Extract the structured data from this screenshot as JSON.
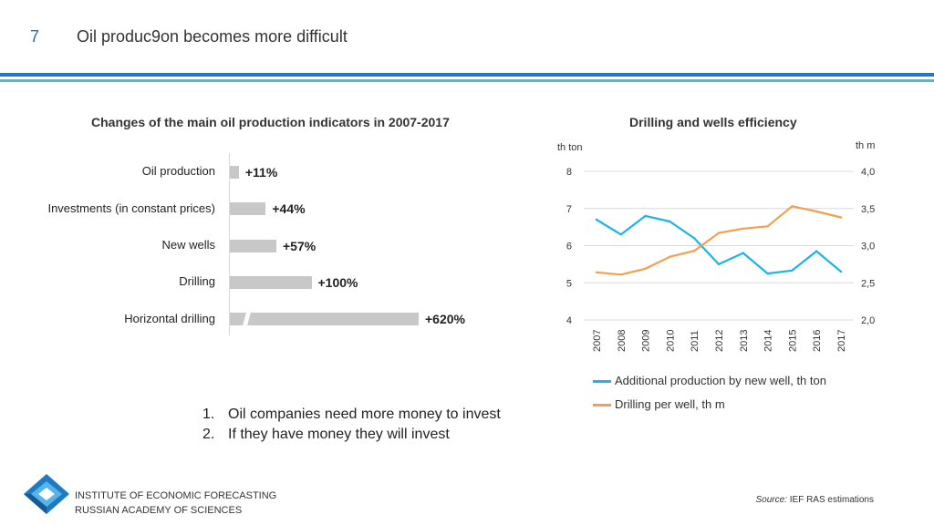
{
  "slide": {
    "number": "7",
    "title": "Oil produc9on becomes more difficult"
  },
  "chart_data": [
    {
      "type": "bar",
      "orientation": "horizontal",
      "title": "Changes of the main oil production indicators in 2007-2017",
      "categories": [
        "Oil production",
        "Investments (in constant prices)",
        "New wells",
        "Drilling",
        "Horizontal drilling"
      ],
      "values": [
        11,
        44,
        57,
        100,
        620
      ],
      "labels": [
        "+11%",
        "+44%",
        "+57%",
        "+100%",
        "+620%"
      ],
      "axis_break_on": "Horizontal drilling",
      "color": "#c8c8c8"
    },
    {
      "type": "line",
      "title": "Drilling and wells efficiency",
      "x": [
        "2007",
        "2008",
        "2009",
        "2010",
        "2011",
        "2012",
        "2013",
        "2014",
        "2015",
        "2016",
        "2017"
      ],
      "ylabel": "th ton",
      "ylabel2": "th m",
      "ylim": [
        4,
        8
      ],
      "y2lim": [
        2.0,
        4.0
      ],
      "yticks": [
        "8",
        "7",
        "6",
        "5",
        "4"
      ],
      "y2ticks": [
        "4,0",
        "3,5",
        "3,0",
        "2,5",
        "2,0"
      ],
      "series": [
        {
          "name": "Additional production by new well, th ton",
          "axis": "left",
          "color": "#1cb4e6",
          "values": [
            6.7,
            6.3,
            6.8,
            6.65,
            6.2,
            5.5,
            5.8,
            5.25,
            5.33,
            5.85,
            5.3
          ]
        },
        {
          "name": "Drilling per well, th m",
          "axis": "right",
          "color": "#f0a050",
          "values": [
            2.64,
            2.61,
            2.69,
            2.85,
            2.93,
            3.17,
            3.23,
            3.26,
            3.53,
            3.46,
            3.38
          ]
        }
      ]
    }
  ],
  "points": [
    {
      "num": "1.",
      "text": "Oil companies need more money to invest"
    },
    {
      "num": "2.",
      "text": "If they have money they will invest"
    }
  ],
  "footer": {
    "org_line1": "INSTITUTE OF ECONOMIC FORECASTING",
    "org_line2": "RUSSIAN ACADEMY OF SCIENCES",
    "source_label": "Source:",
    "source_text": " IEF RAS estimations"
  },
  "colors": {
    "accent_dark": "#1f7ac4",
    "accent_light": "#56b4e6"
  }
}
